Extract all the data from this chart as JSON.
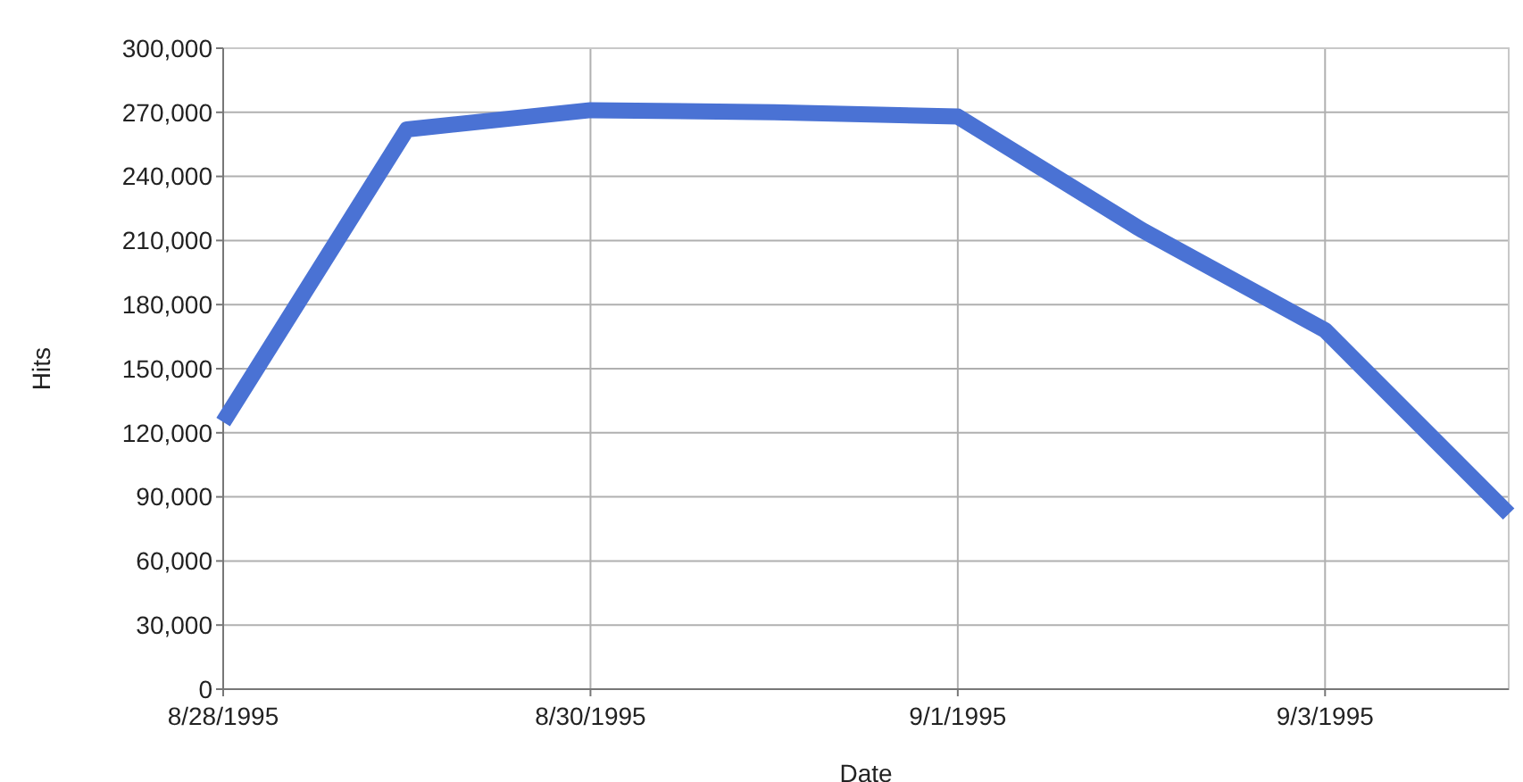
{
  "chart_data": {
    "type": "line",
    "xlabel": "Date",
    "ylabel": "Hits",
    "x": [
      "1995-08-28",
      "1995-08-29",
      "1995-08-30",
      "1995-08-31",
      "1995-09-01",
      "1995-09-02",
      "1995-09-03",
      "1995-09-04"
    ],
    "series": [
      {
        "color": "#4a72d4",
        "values": [
          125000,
          262000,
          271000,
          270000,
          268000,
          215000,
          168000,
          82000
        ]
      }
    ],
    "xlim": [
      "1995-08-28",
      "1995-09-04"
    ],
    "xticks": [
      {
        "value": "1995-08-28",
        "label": "8/28/1995"
      },
      {
        "value": "1995-08-30",
        "label": "8/30/1995"
      },
      {
        "value": "1995-09-01",
        "label": "9/1/1995"
      },
      {
        "value": "1995-09-03",
        "label": "9/3/1995"
      }
    ],
    "ylim": [
      0,
      300000
    ],
    "yticks": [
      {
        "value": 0,
        "label": "0"
      },
      {
        "value": 30000,
        "label": "30,000"
      },
      {
        "value": 60000,
        "label": "60,000"
      },
      {
        "value": 90000,
        "label": "90,000"
      },
      {
        "value": 120000,
        "label": "120,000"
      },
      {
        "value": 150000,
        "label": "150,000"
      },
      {
        "value": 180000,
        "label": "180,000"
      },
      {
        "value": 210000,
        "label": "210,000"
      },
      {
        "value": 240000,
        "label": "240,000"
      },
      {
        "value": 270000,
        "label": "270,000"
      },
      {
        "value": 300000,
        "label": "300,000"
      }
    ],
    "grid": true,
    "line_style": "solid"
  }
}
